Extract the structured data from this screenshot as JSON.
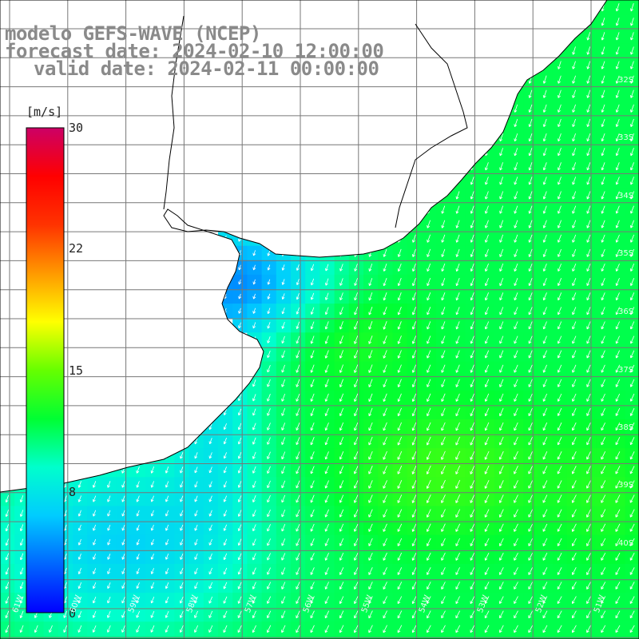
{
  "title": {
    "line1": "modelo GEFS-WAVE (NCEP)",
    "line2": "forecast date: 2024-02-10 12:00:00",
    "line3": "valid date: 2024-02-11 00:00:00"
  },
  "colorbar": {
    "unit": "[m/s]",
    "ticks": [
      "30",
      "22",
      "15",
      "8",
      "0"
    ],
    "tick_values": [
      30,
      22,
      15,
      8,
      0
    ],
    "min": 0,
    "max": 30,
    "stops": [
      "#0000ff",
      "#0066ff",
      "#00ccff",
      "#00ffcc",
      "#00ff33",
      "#66ff00",
      "#ffff00",
      "#ff9900",
      "#ff3300",
      "#ff0000",
      "#cc0066"
    ]
  },
  "lat_labels": [
    "32S",
    "33S",
    "34S",
    "35S",
    "36S",
    "37S",
    "38S",
    "39S",
    "40S"
  ],
  "lon_labels": [
    "61W",
    "60W",
    "59W",
    "58W",
    "57W",
    "56W",
    "55W",
    "54W",
    "53W",
    "52W",
    "51W"
  ],
  "colors": {
    "land": "#ffffff",
    "coast": "#000000",
    "grid": "#777777"
  }
}
